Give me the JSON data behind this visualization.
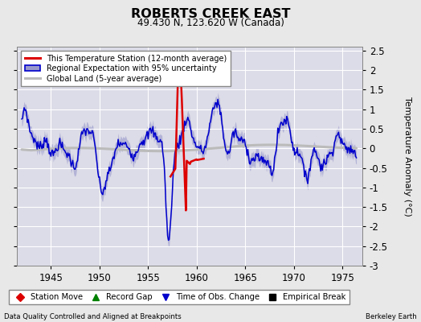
{
  "title": "ROBERTS CREEK EAST",
  "subtitle": "49.430 N, 123.620 W (Canada)",
  "ylabel": "Temperature Anomaly (°C)",
  "xlim": [
    1941.5,
    1977.0
  ],
  "ylim": [
    -3.0,
    2.6
  ],
  "yticks": [
    -3,
    -2.5,
    -2,
    -1.5,
    -1,
    -0.5,
    0,
    0.5,
    1,
    1.5,
    2,
    2.5
  ],
  "xticks": [
    1945,
    1950,
    1955,
    1960,
    1965,
    1970,
    1975
  ],
  "bg_color": "#dcdce8",
  "grid_color": "#ffffff",
  "regional_color": "#0000cc",
  "regional_fill_color": "#9999cc",
  "station_color": "#dd0000",
  "global_color": "#bbbbbb",
  "footer_left": "Data Quality Controlled and Aligned at Breakpoints",
  "footer_right": "Berkeley Earth",
  "fig_bg": "#e8e8e8"
}
